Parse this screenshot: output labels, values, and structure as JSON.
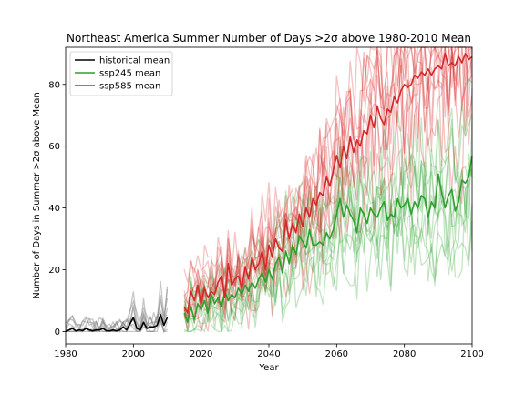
{
  "chart_data": {
    "type": "line",
    "title": "Northeast America Summer Number of Days >2σ above 1980-2010 Mean",
    "xlabel": "Year",
    "ylabel": "Number of Days in Summer >2σ above Mean",
    "xlim": [
      1980,
      2100
    ],
    "ylim": [
      -4,
      92
    ],
    "xticks": [
      1980,
      2000,
      2020,
      2040,
      2060,
      2080,
      2100
    ],
    "yticks": [
      0,
      20,
      40,
      60,
      80
    ],
    "grid": false,
    "legend_position": "top-left",
    "series": [
      {
        "name": "historical mean",
        "color": "#000000",
        "members_color": "#808080",
        "x": [
          1980,
          1981,
          1982,
          1983,
          1984,
          1985,
          1986,
          1987,
          1988,
          1989,
          1990,
          1991,
          1992,
          1993,
          1994,
          1995,
          1996,
          1997,
          1998,
          1999,
          2000,
          2001,
          2002,
          2003,
          2004,
          2005,
          2006,
          2007,
          2008,
          2009,
          2010
        ],
        "values": [
          0,
          0.5,
          1,
          0.2,
          0.5,
          0.3,
          1,
          0.5,
          0.2,
          0.5,
          0.5,
          1,
          0.3,
          0.2,
          0.5,
          0.2,
          0.5,
          1.5,
          0.5,
          2.5,
          4.5,
          1,
          0.5,
          3,
          1,
          1.5,
          1.5,
          2,
          5.5,
          2,
          4.5
        ]
      },
      {
        "name": "ssp245 mean",
        "color": "#2ca02c",
        "members_color": "#2ca02c",
        "x": [
          2015,
          2016,
          2017,
          2018,
          2019,
          2020,
          2021,
          2022,
          2023,
          2024,
          2025,
          2026,
          2027,
          2028,
          2029,
          2030,
          2031,
          2032,
          2033,
          2034,
          2035,
          2036,
          2037,
          2038,
          2039,
          2040,
          2041,
          2042,
          2043,
          2044,
          2045,
          2046,
          2047,
          2048,
          2049,
          2050,
          2051,
          2052,
          2053,
          2054,
          2055,
          2056,
          2057,
          2058,
          2059,
          2060,
          2061,
          2062,
          2063,
          2064,
          2065,
          2066,
          2067,
          2068,
          2069,
          2070,
          2071,
          2072,
          2073,
          2074,
          2075,
          2076,
          2077,
          2078,
          2079,
          2080,
          2081,
          2082,
          2083,
          2084,
          2085,
          2086,
          2087,
          2088,
          2089,
          2090,
          2091,
          2092,
          2093,
          2094,
          2095,
          2096,
          2097,
          2098,
          2099,
          2100
        ],
        "values": [
          6,
          3,
          8,
          4,
          9,
          7,
          10,
          6,
          12,
          9,
          11,
          8,
          13,
          10,
          12,
          11,
          14,
          12,
          15,
          13,
          16,
          14,
          17,
          19,
          16,
          20,
          17,
          22,
          24,
          19,
          26,
          22,
          28,
          25,
          31,
          29,
          27,
          33,
          28,
          28,
          29,
          28,
          32,
          30,
          33,
          38,
          43,
          37,
          41,
          38,
          36,
          32,
          40,
          38,
          35,
          40,
          38,
          37,
          40,
          42,
          36,
          38,
          37,
          43,
          40,
          41,
          43,
          38,
          42,
          40,
          44,
          43,
          37,
          42,
          40,
          51,
          45,
          40,
          44,
          46,
          39,
          42,
          49,
          48,
          50,
          57
        ]
      },
      {
        "name": "ssp585 mean",
        "color": "#d62728",
        "members_color": "#d62728",
        "x": [
          2015,
          2016,
          2017,
          2018,
          2019,
          2020,
          2021,
          2022,
          2023,
          2024,
          2025,
          2026,
          2027,
          2028,
          2029,
          2030,
          2031,
          2032,
          2033,
          2034,
          2035,
          2036,
          2037,
          2038,
          2039,
          2040,
          2041,
          2042,
          2043,
          2044,
          2045,
          2046,
          2047,
          2048,
          2049,
          2050,
          2051,
          2052,
          2053,
          2054,
          2055,
          2056,
          2057,
          2058,
          2059,
          2060,
          2061,
          2062,
          2063,
          2064,
          2065,
          2066,
          2067,
          2068,
          2069,
          2070,
          2071,
          2072,
          2073,
          2074,
          2075,
          2076,
          2077,
          2078,
          2079,
          2080,
          2081,
          2082,
          2083,
          2084,
          2085,
          2086,
          2087,
          2088,
          2089,
          2090,
          2091,
          2092,
          2093,
          2094,
          2095,
          2096,
          2097,
          2098,
          2099,
          2100
        ],
        "values": [
          8,
          6,
          13,
          10,
          15,
          9,
          14,
          11,
          13,
          12,
          16,
          18,
          11,
          22,
          15,
          17,
          18,
          14,
          21,
          17,
          24,
          20,
          22,
          26,
          20,
          28,
          24,
          30,
          27,
          26,
          36,
          30,
          35,
          32,
          38,
          34,
          40,
          37,
          43,
          41,
          45,
          44,
          50,
          47,
          52,
          57,
          53,
          60,
          56,
          63,
          58,
          62,
          60,
          65,
          64,
          70,
          66,
          73,
          69,
          67,
          72,
          71,
          76,
          74,
          78,
          80,
          79,
          80,
          83,
          82,
          84,
          83,
          85,
          83,
          85,
          86,
          85,
          90,
          86,
          87,
          86,
          89,
          87,
          90,
          88,
          89
        ]
      }
    ]
  }
}
